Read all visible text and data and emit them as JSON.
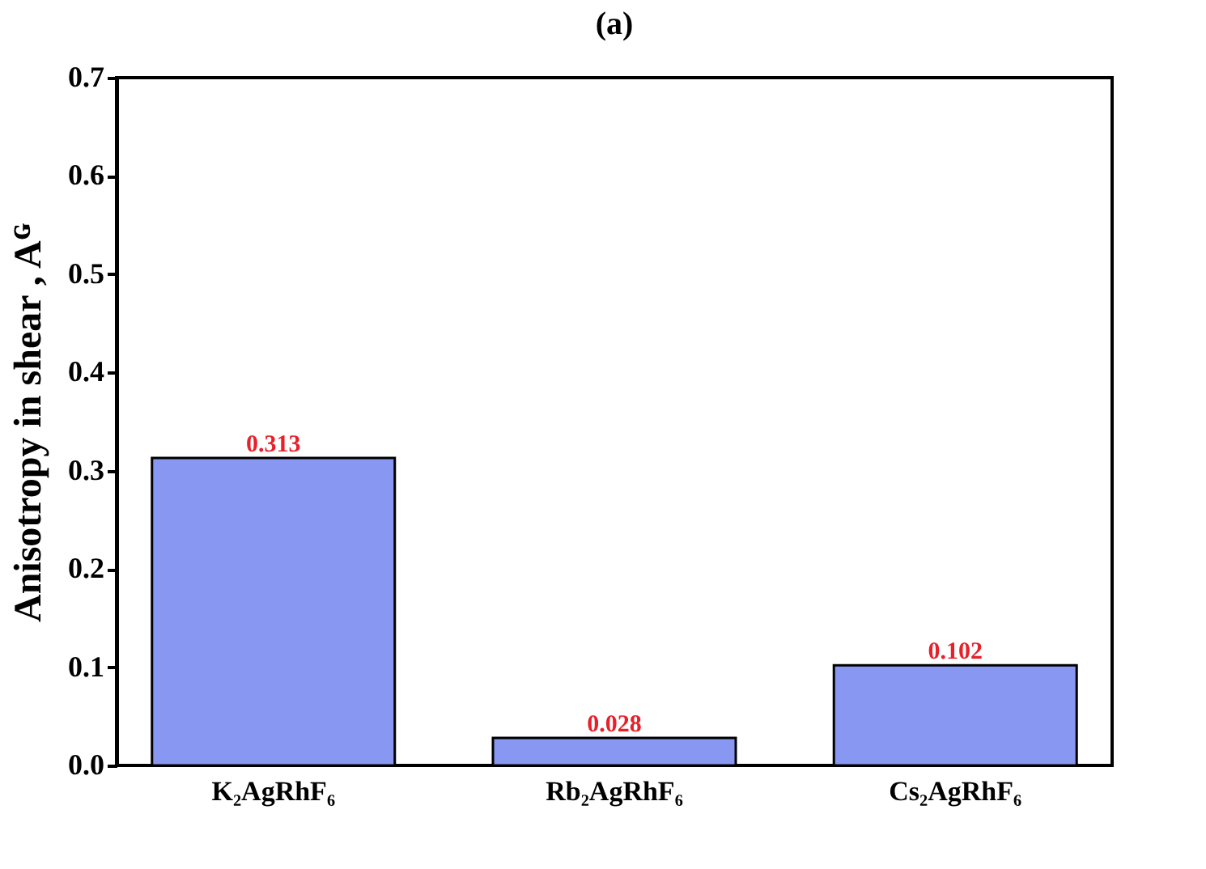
{
  "chart_data": {
    "type": "bar",
    "title": "(a)",
    "ylabel": "Anisotropy in shear , Aᴳ",
    "categories": [
      "K₂AgRhF₆",
      "Rb₂AgRhF₆",
      "Cs₂AgRhF₆"
    ],
    "values": [
      0.313,
      0.028,
      0.102
    ],
    "color": "#8797f2",
    "ylim": [
      0,
      0.7
    ],
    "yticks": [
      {
        "value": 0,
        "label": "0.0"
      },
      {
        "value": 0.1,
        "label": "0.1"
      },
      {
        "value": 0.2,
        "label": "0.2"
      },
      {
        "value": 0.3,
        "label": "0.3"
      },
      {
        "value": 0.4,
        "label": "0.4"
      },
      {
        "value": 0.5,
        "label": "0.5"
      },
      {
        "value": 0.6,
        "label": "0.6"
      },
      {
        "value": 0.7,
        "label": "0.7"
      }
    ],
    "data_labels": true,
    "grid": false
  }
}
